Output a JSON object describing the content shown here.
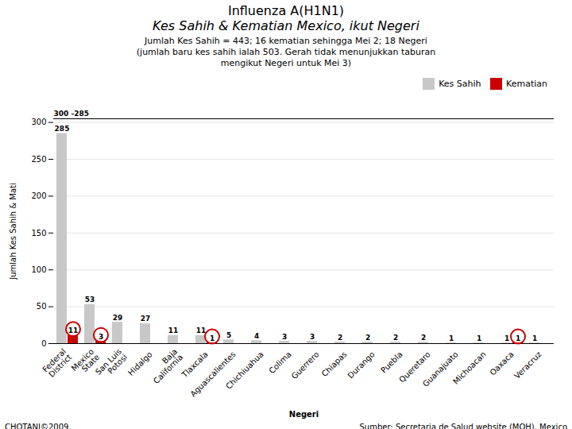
{
  "chart_data": {
    "type": "bar",
    "title": "Influenza A(H1N1)\nKes Sahih & Kematian Mexico, ikut Negeri",
    "subtitle": "Jumlah Kes Sahih = 443; 16 kematian sehingga Mei 2; 18 Negeri\n(jumlah baru kes sahih ialah 503. Gerah tidak menunjukkan taburan\nmengikut Negeri untuk Mei 3)",
    "xlabel": "Negeri",
    "ylabel": "Jumlah Kes Sahih & Mati",
    "annotations": [
      "300 -285",
      "CHOTANI©2009.",
      "Sumber: Secretaria de Salud website (MOH), Mexico"
    ],
    "categories": [
      "Federal\nDistrict",
      "Mexico\nState",
      "San Luis\nPotosi",
      "Hidalgo",
      "Baja\nCalifornia",
      "Tlaxcala",
      "Aguascalientes",
      "Chichiuahua",
      "Colima",
      "Guerrero",
      "Chiapas",
      "Durango",
      "Puebla",
      "Queretaro",
      "Guanajuato",
      "Michoacan",
      "Oaxaca",
      "Veracruz"
    ],
    "series": [
      {
        "name": "Kes Sahih",
        "color": "#c8c8c8",
        "values": [
          285,
          53,
          29,
          27,
          11,
          11,
          5,
          4,
          3,
          3,
          2,
          2,
          2,
          2,
          1,
          1,
          1,
          1
        ]
      },
      {
        "name": "Kematian",
        "color": "#cc0000",
        "values": [
          11,
          3,
          0,
          0,
          0,
          1,
          0,
          0,
          0,
          0,
          0,
          0,
          0,
          0,
          0,
          0,
          1,
          0
        ],
        "value_labels": [
          "11",
          "3",
          null,
          null,
          null,
          "1",
          null,
          null,
          null,
          null,
          null,
          null,
          null,
          null,
          null,
          null,
          "1",
          null
        ],
        "circled": [
          true,
          true,
          false,
          false,
          false,
          true,
          false,
          false,
          false,
          false,
          false,
          false,
          false,
          false,
          false,
          false,
          true,
          false
        ]
      }
    ],
    "ylim": [
      0,
      305
    ],
    "yticks": [
      0,
      50,
      100,
      150,
      200,
      250,
      300
    ],
    "grid": true,
    "legend": "upper right",
    "data_labels": true
  }
}
